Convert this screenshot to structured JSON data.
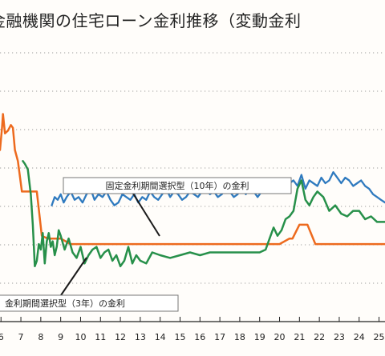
{
  "chart_data": {
    "type": "line",
    "title": "金融機関の住宅ローン金利推移（変動金利",
    "categories": [
      "6",
      "7",
      "8",
      "9",
      "10",
      "11",
      "12",
      "13",
      "14",
      "15",
      "16",
      "17",
      "18",
      "19",
      "20",
      "21",
      "22",
      "23",
      "24",
      "25"
    ],
    "tick_labels": [
      "6",
      "7",
      "8",
      "9",
      "10",
      "11",
      "12",
      "13",
      "14",
      "15",
      "16",
      "17",
      "18",
      "19",
      "20",
      "21",
      "22",
      "23",
      "24",
      "25"
    ],
    "grid": true,
    "x_range": [
      5.95,
      25.3
    ],
    "y_range": [
      0,
      100
    ],
    "series": [
      {
        "name": "固定金利期間選択型（3年）の金利",
        "color": "#ed6a1e",
        "x": [
          5.95,
          6.05,
          6.1,
          6.2,
          6.35,
          6.5,
          6.6,
          6.7,
          6.85,
          7.05,
          7.2,
          7.4,
          7.6,
          7.8,
          8.05,
          8.35,
          8.7,
          9.0,
          9.5,
          10.0,
          10.5,
          11.0,
          11.5,
          12.0,
          12.5,
          13.0,
          14.0,
          15.0,
          16.0,
          17.0,
          18.0,
          19.0,
          19.5,
          20.0,
          20.5,
          20.65,
          21.0,
          21.4,
          21.8,
          22.5,
          23.0,
          24.0,
          25.0,
          25.3
        ],
        "values": [
          62,
          70,
          75,
          68,
          69,
          71,
          70,
          62,
          58,
          47,
          47,
          47,
          47,
          47,
          31,
          30,
          30,
          30,
          28,
          28,
          28,
          28,
          28,
          28,
          28,
          28,
          28,
          28,
          28,
          28,
          28,
          28,
          28,
          28,
          30,
          30,
          35,
          35,
          28,
          28,
          28,
          28,
          28,
          28
        ]
      },
      {
        "name": "固定金利期間選択型（10年）の金利",
        "color": "#2f7abf",
        "x": [
          8.55,
          8.7,
          8.85,
          9.0,
          9.15,
          9.3,
          9.5,
          9.7,
          9.9,
          10.1,
          10.3,
          10.5,
          10.7,
          10.9,
          11.1,
          11.3,
          11.5,
          11.7,
          11.9,
          12.1,
          12.3,
          12.5,
          12.7,
          12.9,
          13.1,
          13.3,
          13.5,
          13.7,
          13.9,
          14.1,
          14.3,
          14.5,
          14.7,
          14.9,
          15.1,
          15.3,
          15.5,
          15.7,
          15.9,
          16.1,
          16.3,
          16.5,
          16.7,
          16.9,
          17.1,
          17.3,
          17.5,
          17.7,
          17.9,
          18.1,
          18.3,
          18.5,
          18.7,
          18.9,
          19.1,
          19.3,
          19.5,
          19.7,
          19.9,
          20.1,
          20.3,
          20.5,
          20.7,
          20.9,
          21.1,
          21.3,
          21.5,
          21.7,
          21.9,
          22.1,
          22.3,
          22.5,
          22.7,
          22.9,
          23.1,
          23.3,
          23.5,
          23.7,
          23.9,
          24.1,
          24.3,
          24.5,
          24.7,
          24.9,
          25.1,
          25.3
        ],
        "values": [
          42,
          45,
          44,
          46,
          43,
          45,
          47,
          44,
          45,
          43,
          46,
          48,
          44,
          46,
          45,
          47,
          44,
          42,
          43,
          46,
          45,
          44,
          46,
          43,
          45,
          44,
          47,
          45,
          44,
          46,
          48,
          45,
          47,
          46,
          44,
          45,
          47,
          46,
          45,
          47,
          49,
          46,
          47,
          45,
          46,
          48,
          47,
          45,
          46,
          49,
          46,
          48,
          47,
          45,
          47,
          49,
          48,
          50,
          49,
          47,
          48,
          50,
          51,
          49,
          53,
          48,
          51,
          50,
          49,
          52,
          50,
          51,
          54,
          52,
          50,
          52,
          51,
          49,
          50,
          51,
          49,
          48,
          46,
          45,
          44,
          43
        ]
      },
      {
        "name": "変動金利",
        "color": "#27904a",
        "x": [
          7.1,
          7.2,
          7.35,
          7.5,
          7.6,
          7.7,
          7.8,
          7.9,
          8.0,
          8.1,
          8.2,
          8.3,
          8.4,
          8.5,
          8.6,
          8.7,
          8.8,
          8.9,
          9.0,
          9.2,
          9.4,
          9.6,
          9.8,
          10.0,
          10.2,
          10.4,
          10.6,
          10.8,
          11.0,
          11.2,
          11.4,
          11.6,
          11.8,
          12.0,
          12.2,
          12.4,
          12.6,
          12.8,
          13.0,
          13.3,
          13.6,
          14.0,
          14.5,
          15.0,
          15.5,
          16.0,
          16.5,
          17.0,
          17.5,
          18.0,
          18.5,
          19.0,
          19.3,
          19.5,
          19.7,
          19.9,
          20.1,
          20.3,
          20.5,
          20.7,
          20.9,
          21.1,
          21.3,
          21.5,
          21.7,
          21.9,
          22.2,
          22.5,
          22.8,
          23.1,
          23.4,
          23.7,
          24.0,
          24.3,
          24.6,
          24.9,
          25.2,
          25.3
        ],
        "values": [
          58,
          57,
          55,
          46,
          35,
          20,
          22,
          28,
          26,
          32,
          21,
          29,
          32,
          27,
          29,
          24,
          27,
          33,
          31,
          26,
          30,
          25,
          23,
          27,
          21,
          24,
          26,
          27,
          23,
          25,
          26,
          22,
          24,
          20,
          22,
          27,
          21,
          24,
          22,
          21,
          25,
          24,
          23,
          24,
          25,
          24,
          25,
          25,
          25,
          25,
          25,
          25,
          26,
          30,
          34,
          31,
          33,
          37,
          38,
          40,
          48,
          51,
          44,
          42,
          45,
          47,
          45,
          40,
          42,
          39,
          38,
          40,
          40,
          37,
          38,
          36,
          36,
          36
        ]
      }
    ],
    "annotations": [
      "固定金利期間選択型（10年）の金利",
      "金利期間選択型（3年）の金利"
    ]
  }
}
